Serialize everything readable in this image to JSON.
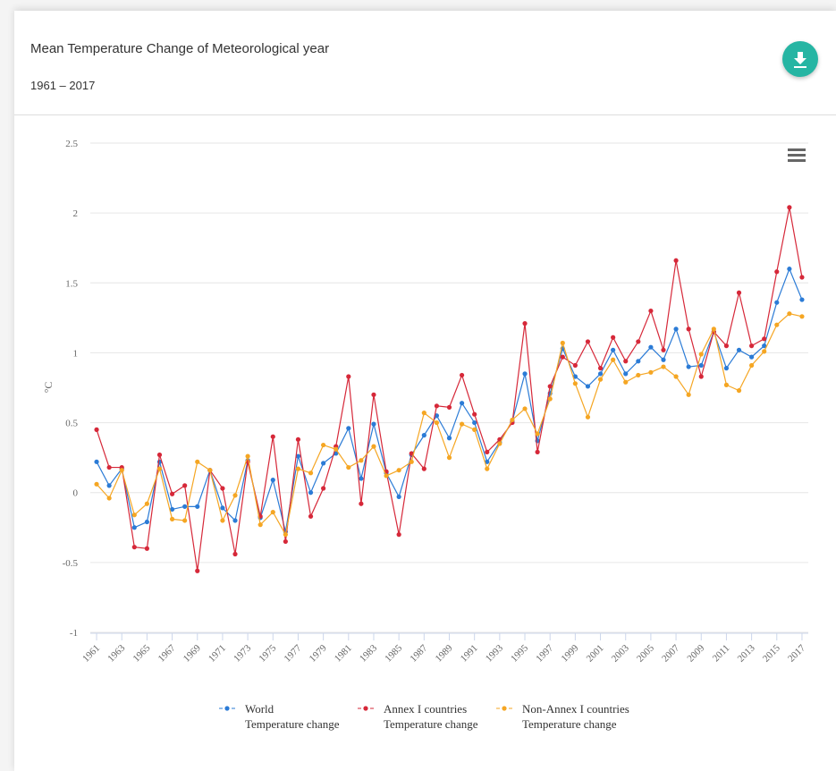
{
  "chart_data": {
    "type": "line",
    "title": "Mean Temperature Change of Meteorological year",
    "subtitle": "1961 – 2017",
    "y_label": "°C",
    "x": [
      1961,
      1962,
      1963,
      1964,
      1965,
      1966,
      1967,
      1968,
      1969,
      1970,
      1971,
      1972,
      1973,
      1974,
      1975,
      1976,
      1977,
      1978,
      1979,
      1980,
      1981,
      1982,
      1983,
      1984,
      1985,
      1986,
      1987,
      1988,
      1989,
      1990,
      1991,
      1992,
      1993,
      1994,
      1995,
      1996,
      1997,
      1998,
      1999,
      2000,
      2001,
      2002,
      2003,
      2004,
      2005,
      2006,
      2007,
      2008,
      2009,
      2010,
      2011,
      2012,
      2013,
      2014,
      2015,
      2016,
      2017
    ],
    "xlim": [
      1960.5,
      2017.5
    ],
    "xticks": [
      1961,
      1963,
      1965,
      1967,
      1969,
      1971,
      1973,
      1975,
      1977,
      1979,
      1981,
      1983,
      1985,
      1987,
      1989,
      1991,
      1993,
      1995,
      1997,
      1999,
      2001,
      2003,
      2005,
      2007,
      2009,
      2011,
      2013,
      2015,
      2017
    ],
    "ylim": [
      -1,
      2.5
    ],
    "yticks": [
      -1,
      -0.5,
      0,
      0.5,
      1,
      1.5,
      2,
      2.5
    ],
    "grid": true,
    "legend": "bottom",
    "series": [
      {
        "name": "World\nTemperature change",
        "color": "#2b7bd6",
        "values": [
          0.22,
          0.05,
          0.17,
          -0.25,
          -0.21,
          0.22,
          -0.12,
          -0.1,
          -0.1,
          0.16,
          -0.11,
          -0.2,
          0.23,
          -0.18,
          0.09,
          -0.28,
          0.26,
          0.0,
          0.21,
          0.28,
          0.46,
          0.1,
          0.49,
          0.14,
          -0.03,
          0.27,
          0.41,
          0.55,
          0.39,
          0.64,
          0.5,
          0.22,
          0.36,
          0.51,
          0.85,
          0.37,
          0.71,
          1.03,
          0.83,
          0.76,
          0.85,
          1.02,
          0.85,
          0.94,
          1.04,
          0.95,
          1.17,
          0.9,
          0.91,
          1.15,
          0.89,
          1.02,
          0.97,
          1.05,
          1.36,
          1.6,
          1.38
        ]
      },
      {
        "name": "Annex I countries\nTemperature change",
        "color": "#d62839",
        "values": [
          0.45,
          0.18,
          0.18,
          -0.39,
          -0.4,
          0.27,
          -0.01,
          0.05,
          -0.56,
          0.16,
          0.03,
          -0.44,
          0.22,
          -0.17,
          0.4,
          -0.35,
          0.38,
          -0.17,
          0.03,
          0.33,
          0.83,
          -0.08,
          0.7,
          0.15,
          -0.3,
          0.28,
          0.17,
          0.62,
          0.61,
          0.84,
          0.56,
          0.29,
          0.38,
          0.5,
          1.21,
          0.29,
          0.76,
          0.97,
          0.91,
          1.08,
          0.89,
          1.11,
          0.94,
          1.08,
          1.3,
          1.02,
          1.66,
          1.17,
          0.83,
          1.15,
          1.05,
          1.43,
          1.05,
          1.1,
          1.58,
          2.04,
          1.54
        ]
      },
      {
        "name": "Non-Annex I countries\nTemperature change",
        "color": "#f5a623",
        "values": [
          0.06,
          -0.04,
          0.16,
          -0.16,
          -0.08,
          0.17,
          -0.19,
          -0.2,
          0.22,
          0.16,
          -0.2,
          -0.02,
          0.26,
          -0.23,
          -0.14,
          -0.3,
          0.17,
          0.14,
          0.34,
          0.31,
          0.18,
          0.23,
          0.33,
          0.12,
          0.16,
          0.22,
          0.57,
          0.5,
          0.25,
          0.49,
          0.45,
          0.17,
          0.35,
          0.52,
          0.6,
          0.42,
          0.67,
          1.07,
          0.78,
          0.54,
          0.81,
          0.95,
          0.79,
          0.84,
          0.86,
          0.9,
          0.83,
          0.7,
          0.99,
          1.17,
          0.77,
          0.73,
          0.91,
          1.01,
          1.2,
          1.28,
          1.26
        ]
      }
    ]
  }
}
